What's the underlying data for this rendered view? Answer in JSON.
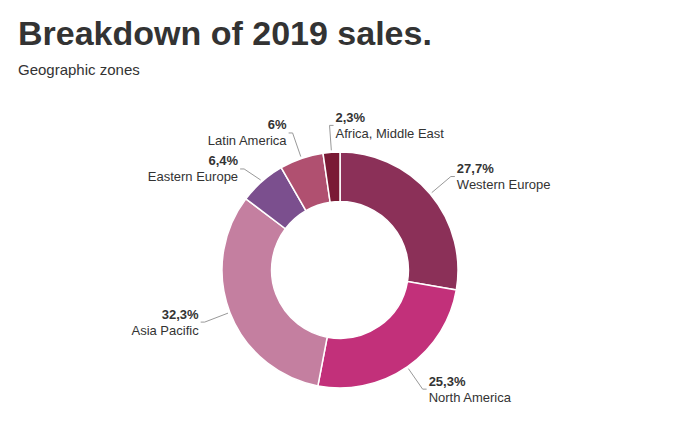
{
  "chart_data": {
    "type": "pie",
    "title": "Breakdown of 2019 sales.",
    "subtitle": "Geographic zones",
    "categories": [
      "Western Europe",
      "North America",
      "Asia Pacific",
      "Eastern Europe",
      "Latin America",
      "Africa, Middle East"
    ],
    "values": [
      27.7,
      25.3,
      32.3,
      6.4,
      6.0,
      2.3
    ],
    "value_labels": [
      "27,7%",
      "25,3%",
      "32,3%",
      "6,4%",
      "6%",
      "2,3%"
    ],
    "colors": [
      "#8b3058",
      "#c2307a",
      "#c47fa0",
      "#7b4f8e",
      "#b05070",
      "#7a1a35"
    ],
    "data_labels": true
  }
}
